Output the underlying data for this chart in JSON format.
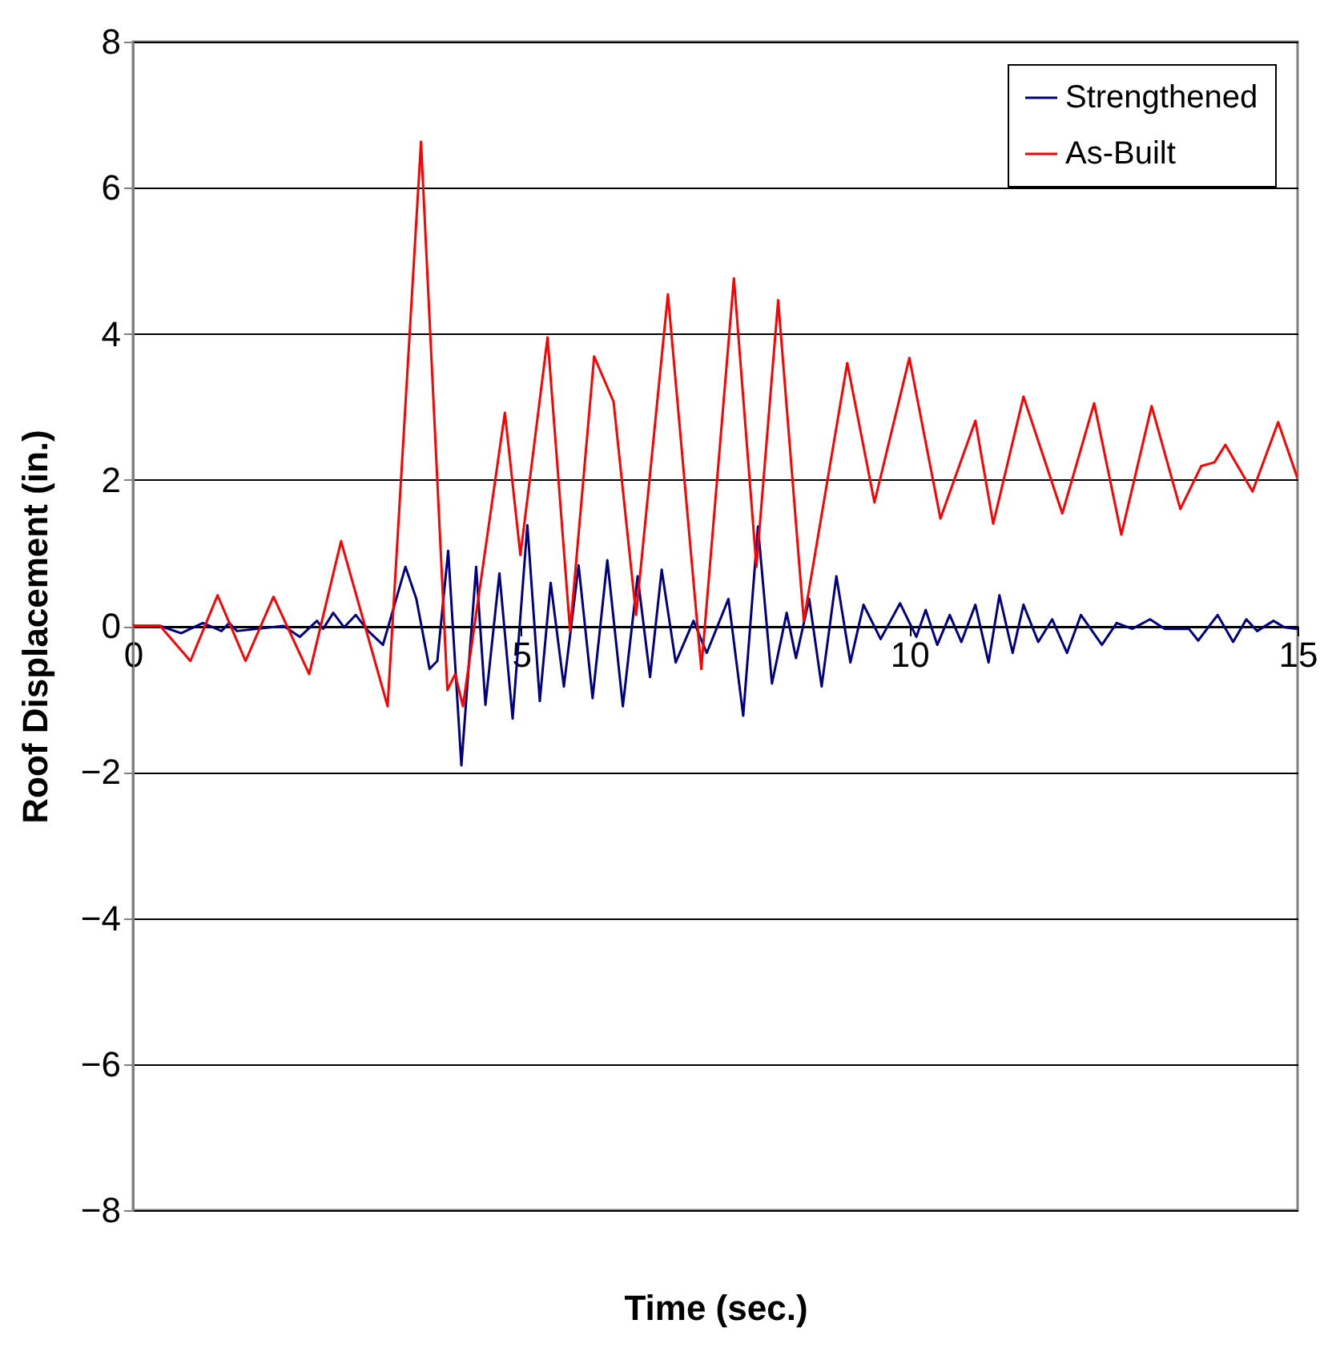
{
  "chart_data": {
    "type": "line",
    "xlabel": "Time (sec.)",
    "ylabel": "Roof Displacement (in.)",
    "xlim": [
      0,
      15
    ],
    "xticks": [
      0,
      5,
      10,
      15
    ],
    "ylim": [
      -8,
      8
    ],
    "yticks": [
      -8,
      -6,
      -4,
      -2,
      0,
      2,
      4,
      6,
      8
    ],
    "grid": "y",
    "legend": "top right",
    "line_style": "solid",
    "series": [
      {
        "name": "Strengthened",
        "color": "#000080",
        "x": [
          0,
          0.35,
          0.62,
          0.9,
          1.14,
          1.24,
          1.34,
          1.94,
          2.15,
          2.37,
          2.45,
          2.58,
          2.72,
          2.87,
          3.03,
          3.22,
          3.51,
          3.65,
          3.82,
          3.92,
          4.06,
          4.23,
          4.42,
          4.54,
          4.72,
          4.89,
          5.08,
          5.24,
          5.38,
          5.55,
          5.74,
          5.92,
          6.11,
          6.31,
          6.5,
          6.66,
          6.81,
          6.99,
          7.22,
          7.39,
          7.67,
          7.86,
          8.05,
          8.23,
          8.42,
          8.54,
          8.71,
          8.87,
          9.06,
          9.24,
          9.41,
          9.63,
          9.88,
          10.09,
          10.21,
          10.36,
          10.52,
          10.67,
          10.85,
          11.02,
          11.16,
          11.33,
          11.47,
          11.66,
          11.84,
          12.03,
          12.21,
          12.48,
          12.67,
          12.87,
          13.1,
          13.29,
          13.6,
          13.72,
          13.97,
          14.17,
          14.34,
          14.48,
          14.69,
          14.83,
          15
        ],
        "values": [
          0,
          0,
          -0.1,
          0.04,
          -0.07,
          0.04,
          -0.07,
          0,
          -0.15,
          0.07,
          -0.04,
          0.18,
          -0.02,
          0.15,
          -0.07,
          -0.26,
          0.81,
          0.37,
          -0.59,
          -0.48,
          1.03,
          -1.91,
          0.81,
          -1.08,
          0.72,
          -1.27,
          1.38,
          -1.03,
          0.59,
          -0.83,
          0.83,
          -0.99,
          0.9,
          -1.1,
          0.68,
          -0.7,
          0.77,
          -0.5,
          0.07,
          -0.37,
          0.37,
          -1.23,
          1.36,
          -0.79,
          0.18,
          -0.44,
          0.37,
          -0.83,
          0.68,
          -0.5,
          0.29,
          -0.18,
          0.31,
          -0.15,
          0.22,
          -0.26,
          0.15,
          -0.22,
          0.29,
          -0.5,
          0.42,
          -0.37,
          0.29,
          -0.22,
          0.09,
          -0.37,
          0.15,
          -0.26,
          0.04,
          -0.04,
          0.09,
          -0.04,
          -0.04,
          -0.2,
          0.15,
          -0.22,
          0.09,
          -0.07,
          0.07,
          -0.02,
          -0.04
        ]
      },
      {
        "name": "As-Built",
        "color": "#ff0000",
        "x": [
          0,
          0.35,
          0.74,
          1.09,
          1.45,
          1.81,
          2.27,
          2.68,
          3.28,
          3.71,
          4.05,
          4.15,
          4.25,
          4.79,
          4.99,
          5.34,
          5.63,
          5.94,
          6.19,
          6.48,
          6.89,
          7.32,
          7.74,
          8.03,
          8.31,
          8.64,
          9.2,
          9.55,
          10.0,
          10.4,
          10.85,
          11.08,
          11.47,
          11.97,
          12.38,
          12.73,
          13.12,
          13.49,
          13.76,
          13.93,
          14.07,
          14.42,
          14.75,
          15
        ],
        "values": [
          0,
          0,
          -0.48,
          0.42,
          -0.48,
          0.4,
          -0.66,
          1.16,
          -1.1,
          6.63,
          -0.88,
          -0.66,
          -1.1,
          2.92,
          0.97,
          3.95,
          -0.07,
          3.69,
          3.07,
          0.15,
          4.54,
          -0.59,
          4.76,
          0.81,
          4.46,
          0.07,
          3.6,
          1.69,
          3.67,
          1.47,
          2.81,
          1.4,
          3.14,
          1.54,
          3.05,
          1.25,
          3.01,
          1.6,
          2.19,
          2.24,
          2.48,
          1.84,
          2.79,
          2.02
        ]
      }
    ]
  }
}
